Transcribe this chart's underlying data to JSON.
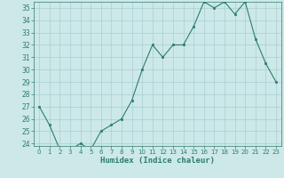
{
  "x": [
    0,
    1,
    2,
    3,
    4,
    5,
    6,
    7,
    8,
    9,
    10,
    11,
    12,
    13,
    14,
    15,
    16,
    17,
    18,
    19,
    20,
    21,
    22,
    23
  ],
  "y": [
    27,
    25.5,
    23.5,
    23.5,
    24,
    23.5,
    25,
    25.5,
    26,
    27.5,
    30,
    32,
    31,
    32,
    32,
    33.5,
    35.5,
    35,
    35.5,
    34.5,
    35.5,
    32.5,
    30.5,
    29
  ],
  "xlabel": "Humidex (Indice chaleur)",
  "xlim_min": -0.5,
  "xlim_max": 23.5,
  "ylim_min": 23.8,
  "ylim_max": 35.5,
  "yticks": [
    24,
    25,
    26,
    27,
    28,
    29,
    30,
    31,
    32,
    33,
    34,
    35
  ],
  "xticks": [
    0,
    1,
    2,
    3,
    4,
    5,
    6,
    7,
    8,
    9,
    10,
    11,
    12,
    13,
    14,
    15,
    16,
    17,
    18,
    19,
    20,
    21,
    22,
    23
  ],
  "line_color": "#2e7d6b",
  "bg_color": "#cce8e8",
  "grid_color": "#aacfcf"
}
